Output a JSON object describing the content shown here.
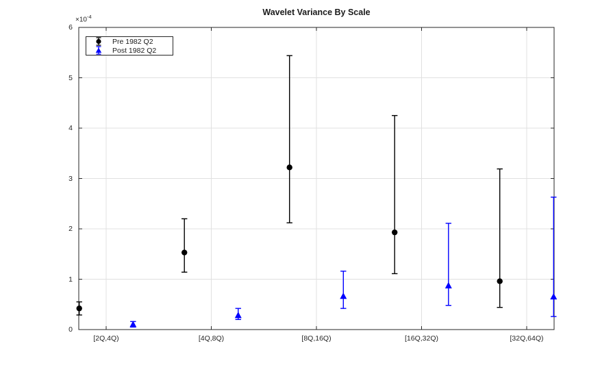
{
  "figure": {
    "background": "#ffffff"
  },
  "colors": {
    "grid": "#e0e0e0",
    "axis": "#262626",
    "text": "#262626",
    "title": "#1a1a1a",
    "pre_series": "#000000",
    "post_series": "#0000ff"
  },
  "chart_data": {
    "type": "scatter",
    "subtype": "errorbar",
    "title": "Wavelet Variance By Scale",
    "xlabel": "",
    "ylabel": "",
    "categories": [
      "[2Q,4Q)",
      "[4Q,8Q)",
      "[8Q,16Q)",
      "[16Q,32Q)",
      "[32Q,64Q)"
    ],
    "y_axis": {
      "tick_values": [
        0,
        1,
        2,
        3,
        4,
        5,
        6
      ],
      "tick_labels": [
        "0",
        "1",
        "2",
        "3",
        "4",
        "5",
        "6"
      ],
      "lim": [
        0,
        6
      ],
      "exponent_label": {
        "base": "×10",
        "exponent": "-4"
      },
      "units_note": "all y values are in units of 1e-4"
    },
    "grid": "both",
    "legend": {
      "position": "top-left"
    },
    "series": [
      {
        "name": "Pre 1982 Q2",
        "marker": "circle",
        "color": "#000000",
        "category_offset": -0.256,
        "values": [
          0.42,
          1.53,
          3.22,
          1.93,
          0.96
        ],
        "ci_low": [
          0.29,
          1.14,
          2.12,
          1.11,
          0.44
        ],
        "ci_high": [
          0.55,
          2.2,
          5.44,
          4.25,
          3.19
        ]
      },
      {
        "name": "Post 1982 Q2",
        "marker": "triangle",
        "color": "#0000ff",
        "category_offset": 0.256,
        "values": [
          0.1,
          0.28,
          0.66,
          0.87,
          0.65
        ],
        "ci_low": [
          0.05,
          0.2,
          0.42,
          0.48,
          0.26
        ],
        "ci_high": [
          0.16,
          0.42,
          1.16,
          2.11,
          2.63
        ]
      }
    ]
  }
}
